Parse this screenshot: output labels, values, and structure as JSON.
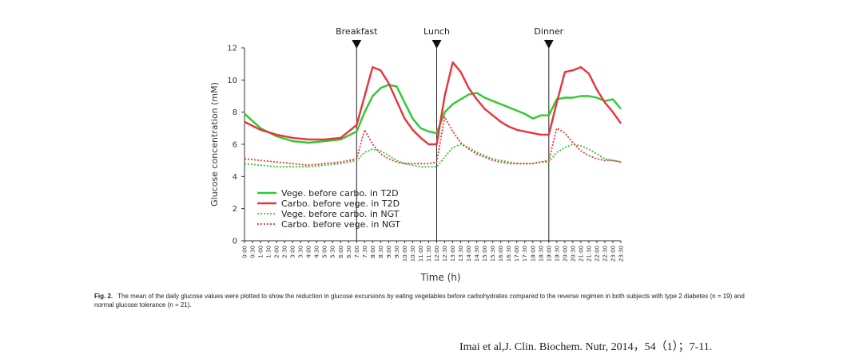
{
  "chart_data": {
    "type": "line",
    "xlabel": "Time (h)",
    "ylabel": "Glucose concentration (mM)",
    "xlim": [
      0,
      23.5
    ],
    "ylim": [
      0,
      12
    ],
    "yticks": [
      "0",
      "2",
      "4",
      "6",
      "8",
      "10",
      "12"
    ],
    "xticks": [
      "0:00",
      "0:30",
      "1:00",
      "1:30",
      "2:00",
      "2:30",
      "3:00",
      "3:30",
      "4:00",
      "4:30",
      "5:00",
      "5:30",
      "6:00",
      "6:30",
      "7:00",
      "7:30",
      "8:00",
      "8:30",
      "9:00",
      "9:30",
      "10:00",
      "10:30",
      "11:00",
      "11:30",
      "12:00",
      "12:30",
      "13:00",
      "13:30",
      "14:00",
      "14:30",
      "15:00",
      "15:30",
      "16:00",
      "16:30",
      "17:00",
      "17:30",
      "18:00",
      "18:30",
      "19:00",
      "19:30",
      "20:00",
      "20:30",
      "21:00",
      "21:30",
      "22:00",
      "22:30",
      "23:00",
      "23:30"
    ],
    "meals": [
      {
        "label": "Breakfast",
        "time": 7
      },
      {
        "label": "Lunch",
        "time": 12
      },
      {
        "label": "Dinner",
        "time": 19
      }
    ],
    "series": [
      {
        "name": "Vege. before carbo. in T2D",
        "color": "#2fc92f",
        "style": "solid",
        "x": [
          0,
          1,
          2,
          3,
          4,
          5,
          6,
          7,
          7.5,
          8,
          8.5,
          9,
          9.5,
          10,
          10.5,
          11,
          11.5,
          12,
          12.5,
          13,
          13.5,
          14,
          14.5,
          15,
          15.5,
          16,
          16.5,
          17,
          17.5,
          18,
          18.5,
          19,
          19.5,
          20,
          20.5,
          21,
          21.5,
          22,
          22.5,
          23,
          23.5
        ],
        "y": [
          7.9,
          7.0,
          6.5,
          6.2,
          6.1,
          6.2,
          6.3,
          6.8,
          8.0,
          9.0,
          9.5,
          9.7,
          9.6,
          8.6,
          7.6,
          7.0,
          6.8,
          6.7,
          8.0,
          8.5,
          8.8,
          9.1,
          9.2,
          8.9,
          8.7,
          8.5,
          8.3,
          8.1,
          7.9,
          7.6,
          7.8,
          7.8,
          8.8,
          8.9,
          8.9,
          9.0,
          9.0,
          8.9,
          8.7,
          8.8,
          8.2
        ]
      },
      {
        "name": "Carbo. before vege. in T2D",
        "color": "#e8343a",
        "style": "solid",
        "x": [
          0,
          1,
          2,
          3,
          4,
          5,
          6,
          7,
          7.5,
          8,
          8.5,
          9,
          9.5,
          10,
          10.5,
          11,
          11.5,
          12,
          12.5,
          13,
          13.5,
          14,
          14.5,
          15,
          15.5,
          16,
          16.5,
          17,
          17.5,
          18,
          18.5,
          19,
          19.5,
          20,
          20.5,
          21,
          21.5,
          22,
          22.5,
          23,
          23.5
        ],
        "y": [
          7.4,
          6.9,
          6.6,
          6.4,
          6.3,
          6.3,
          6.4,
          7.2,
          9.0,
          10.8,
          10.6,
          9.8,
          8.7,
          7.6,
          6.9,
          6.4,
          6.0,
          6.0,
          9.0,
          11.1,
          10.5,
          9.5,
          8.8,
          8.2,
          7.8,
          7.4,
          7.1,
          6.9,
          6.8,
          6.7,
          6.6,
          6.6,
          8.6,
          10.5,
          10.6,
          10.8,
          10.4,
          9.4,
          8.6,
          8.0,
          7.3
        ]
      },
      {
        "name": "Vege. before carbo. in NGT",
        "color": "#2fc92f",
        "style": "dotted",
        "x": [
          0,
          1,
          2,
          3,
          4,
          5,
          6,
          7,
          7.5,
          8,
          8.5,
          9,
          9.5,
          10,
          10.5,
          11,
          11.5,
          12,
          12.5,
          13,
          13.5,
          14,
          14.5,
          15,
          15.5,
          16,
          16.5,
          17,
          17.5,
          18,
          18.5,
          19,
          19.5,
          20,
          20.5,
          21,
          21.5,
          22,
          22.5,
          23,
          23.5
        ],
        "y": [
          4.8,
          4.7,
          4.6,
          4.6,
          4.6,
          4.7,
          4.8,
          5.0,
          5.5,
          5.7,
          5.6,
          5.3,
          5.0,
          4.8,
          4.7,
          4.6,
          4.6,
          4.6,
          5.2,
          5.8,
          6.0,
          5.8,
          5.5,
          5.3,
          5.1,
          5.0,
          4.9,
          4.8,
          4.8,
          4.8,
          4.9,
          4.9,
          5.5,
          5.8,
          6.0,
          5.9,
          5.7,
          5.4,
          5.1,
          5.0,
          4.9
        ]
      },
      {
        "name": "Carbo. before vege. in NGT",
        "color": "#e8343a",
        "style": "dotted",
        "x": [
          0,
          1,
          2,
          3,
          4,
          5,
          6,
          7,
          7.5,
          8,
          8.5,
          9,
          9.5,
          10,
          10.5,
          11,
          11.5,
          12,
          12.5,
          13,
          13.5,
          14,
          14.5,
          15,
          15.5,
          16,
          16.5,
          17,
          17.5,
          18,
          18.5,
          19,
          19.5,
          20,
          20.5,
          21,
          21.5,
          22,
          22.5,
          23,
          23.5
        ],
        "y": [
          5.1,
          5.0,
          4.9,
          4.8,
          4.7,
          4.8,
          4.9,
          5.1,
          6.9,
          6.0,
          5.4,
          5.1,
          4.9,
          4.8,
          4.8,
          4.8,
          4.8,
          4.9,
          7.7,
          6.8,
          6.1,
          5.7,
          5.4,
          5.2,
          5.0,
          4.9,
          4.8,
          4.8,
          4.8,
          4.8,
          4.9,
          5.0,
          7.0,
          6.7,
          6.1,
          5.6,
          5.3,
          5.1,
          5.0,
          5.0,
          4.9
        ]
      }
    ]
  },
  "caption": {
    "label": "Fig. 2.",
    "text": "The mean of the daily glucose values were plotted to show the reduction in glucose excursions by eating vegetables before carbohydrates compared to the reverse regimen in both subjects with type 2 diabetes (n = 19) and normal glucose tolerance (n = 21)."
  },
  "citation": "Imai et al,J. Clin. Biochem. Nutr, 2014，54（1）；7-11."
}
